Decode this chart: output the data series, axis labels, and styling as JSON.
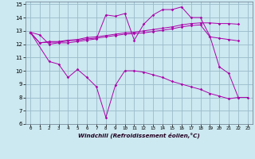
{
  "xlabel": "Windchill (Refroidissement éolien,°C)",
  "background_color": "#cce8f0",
  "grid_color": "#99bbcc",
  "line_color": "#aa00aa",
  "xlim": [
    -0.5,
    23.5
  ],
  "ylim": [
    6,
    15.2
  ],
  "xticks": [
    0,
    1,
    2,
    3,
    4,
    5,
    6,
    7,
    8,
    9,
    10,
    11,
    12,
    13,
    14,
    15,
    16,
    17,
    18,
    19,
    20,
    21,
    22,
    23
  ],
  "yticks": [
    6,
    7,
    8,
    9,
    10,
    11,
    12,
    13,
    14,
    15
  ],
  "line1_x": [
    0,
    1,
    2,
    3,
    4,
    5,
    6,
    7,
    8,
    9,
    10,
    11,
    12,
    13,
    14,
    15,
    16,
    17,
    18,
    19,
    20,
    21,
    22
  ],
  "line1_y": [
    12.9,
    12.7,
    12.0,
    12.1,
    12.1,
    12.2,
    12.3,
    12.4,
    14.2,
    14.1,
    14.3,
    12.3,
    13.5,
    14.2,
    14.6,
    14.6,
    14.8,
    14.0,
    14.0,
    12.6,
    10.3,
    9.8,
    8.0
  ],
  "line2_x": [
    0,
    1,
    2,
    3,
    4,
    5,
    6,
    7,
    8,
    9,
    10,
    11,
    12,
    13,
    14,
    15,
    16,
    17,
    18,
    19,
    20,
    21,
    22
  ],
  "line2_y": [
    12.9,
    12.1,
    12.2,
    12.2,
    12.3,
    12.35,
    12.5,
    12.55,
    12.65,
    12.75,
    12.85,
    12.9,
    13.0,
    13.1,
    13.2,
    13.3,
    13.45,
    13.55,
    13.6,
    13.6,
    13.55,
    13.55,
    13.5
  ],
  "line3_x": [
    0,
    1,
    2,
    3,
    4,
    5,
    6,
    7,
    8,
    9,
    10,
    11,
    12,
    13,
    14,
    15,
    16,
    17,
    18,
    19,
    20,
    21,
    22
  ],
  "line3_y": [
    12.9,
    12.1,
    12.15,
    12.15,
    12.25,
    12.3,
    12.4,
    12.45,
    12.55,
    12.65,
    12.75,
    12.8,
    12.85,
    12.95,
    13.05,
    13.15,
    13.3,
    13.4,
    13.45,
    12.55,
    12.45,
    12.35,
    12.25
  ],
  "line4_x": [
    0,
    2,
    3,
    4,
    5,
    6,
    7,
    8,
    9,
    10,
    11,
    12,
    13,
    14,
    15,
    16,
    17,
    18,
    19,
    20,
    21,
    22,
    23
  ],
  "line4_y": [
    12.9,
    10.7,
    10.5,
    9.5,
    10.1,
    9.5,
    8.8,
    6.5,
    8.9,
    10.0,
    10.0,
    9.9,
    9.7,
    9.5,
    9.2,
    9.0,
    8.8,
    8.6,
    8.3,
    8.1,
    7.9,
    8.0,
    8.0
  ]
}
